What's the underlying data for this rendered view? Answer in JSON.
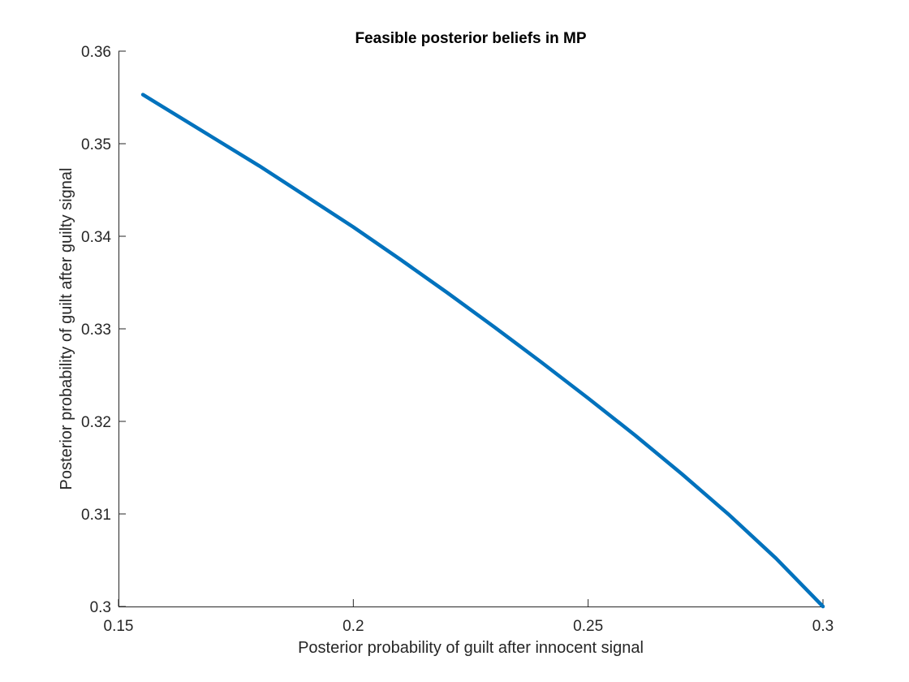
{
  "chart_data": {
    "type": "line",
    "title": "Feasible posterior beliefs in MP",
    "xlabel": "Posterior probability of guilt after innocent signal",
    "ylabel": "Posterior probability of guilt after guilty signal",
    "xlim": [
      0.15,
      0.3
    ],
    "ylim": [
      0.3,
      0.36
    ],
    "xticks": [
      0.15,
      0.2,
      0.25,
      0.3
    ],
    "xtick_labels": [
      "0.15",
      "0.2",
      "0.25",
      "0.3"
    ],
    "yticks": [
      0.3,
      0.31,
      0.32,
      0.33,
      0.34,
      0.35,
      0.36
    ],
    "ytick_labels": [
      "0.3",
      "0.31",
      "0.32",
      "0.33",
      "0.34",
      "0.35",
      "0.36"
    ],
    "grid": false,
    "series": [
      {
        "color": "#0072BD",
        "x": [
          0.1552,
          0.17,
          0.18,
          0.19,
          0.2,
          0.21,
          0.22,
          0.23,
          0.24,
          0.25,
          0.26,
          0.27,
          0.28,
          0.29,
          0.3
        ],
        "y": [
          0.3553,
          0.3507,
          0.3476,
          0.3443,
          0.341,
          0.3375,
          0.3339,
          0.3302,
          0.3264,
          0.3225,
          0.3185,
          0.3143,
          0.3099,
          0.3052,
          0.3
        ]
      }
    ]
  }
}
